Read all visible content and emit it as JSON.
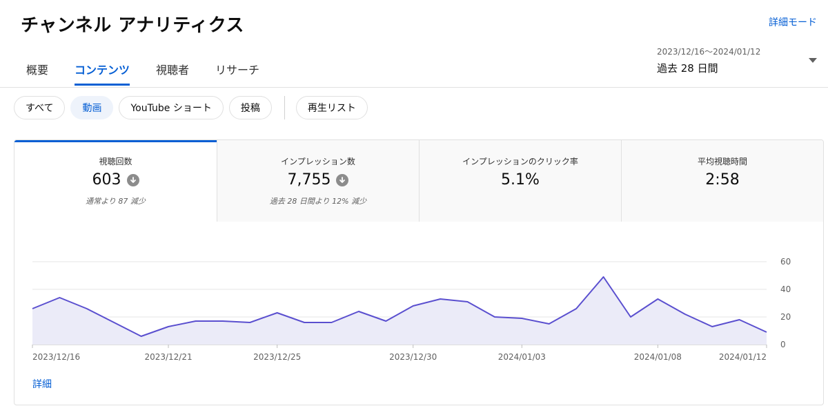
{
  "header": {
    "title": "チャンネル アナリティクス",
    "advanced_mode": "詳細モード"
  },
  "tabs": [
    {
      "label": "概要",
      "active": false
    },
    {
      "label": "コンテンツ",
      "active": true
    },
    {
      "label": "視聴者",
      "active": false
    },
    {
      "label": "リサーチ",
      "active": false
    }
  ],
  "date_range": {
    "dates": "2023/12/16〜2024/01/12",
    "label": "過去 28 日間"
  },
  "chips": [
    {
      "label": "すべて",
      "selected": false
    },
    {
      "label": "動画",
      "selected": true
    },
    {
      "label": "YouTube ショート",
      "selected": false
    },
    {
      "label": "投稿",
      "selected": false
    },
    {
      "label": "再生リスト",
      "selected": false
    }
  ],
  "metrics": [
    {
      "label": "視聴回数",
      "value": "603",
      "trend": "down",
      "sub": "通常より 87 減少",
      "active": true
    },
    {
      "label": "インプレッション数",
      "value": "7,755",
      "trend": "down",
      "sub": "過去 28 日間より 12% 減少",
      "active": false
    },
    {
      "label": "インプレッションのクリック率",
      "value": "5.1%",
      "trend": "",
      "sub": "",
      "active": false
    },
    {
      "label": "平均視聴時間",
      "value": "2:58",
      "trend": "",
      "sub": "",
      "active": false
    }
  ],
  "colors": {
    "accent": "#065fd4",
    "line": "#5a4fcf",
    "fill": "#ebebf8"
  },
  "chart_data": {
    "type": "area",
    "x": [
      "2023/12/16",
      "2023/12/17",
      "2023/12/18",
      "2023/12/19",
      "2023/12/20",
      "2023/12/21",
      "2023/12/22",
      "2023/12/23",
      "2023/12/24",
      "2023/12/25",
      "2023/12/26",
      "2023/12/27",
      "2023/12/28",
      "2023/12/29",
      "2023/12/30",
      "2023/12/31",
      "2024/01/01",
      "2024/01/02",
      "2024/01/03",
      "2024/01/04",
      "2024/01/05",
      "2024/01/06",
      "2024/01/07",
      "2024/01/08",
      "2024/01/09",
      "2024/01/10",
      "2024/01/11",
      "2024/01/12"
    ],
    "values": [
      26,
      34,
      26,
      16,
      6,
      13,
      17,
      17,
      16,
      23,
      16,
      16,
      24,
      17,
      28,
      33,
      31,
      20,
      19,
      15,
      26,
      49,
      20,
      33,
      22,
      13,
      18,
      9
    ],
    "x_tick_labels": [
      "2023/12/16",
      "2023/12/21",
      "2023/12/25",
      "2023/12/30",
      "2024/01/03",
      "2024/01/08",
      "2024/01/12"
    ],
    "y_ticks": [
      0,
      20,
      40,
      60
    ],
    "ylim": [
      0,
      60
    ],
    "grid": true,
    "y_axis_side": "right"
  },
  "details_label": "詳細"
}
